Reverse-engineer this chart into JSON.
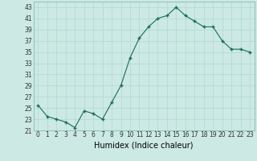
{
  "x": [
    0,
    1,
    2,
    3,
    4,
    5,
    6,
    7,
    8,
    9,
    10,
    11,
    12,
    13,
    14,
    15,
    16,
    17,
    18,
    19,
    20,
    21,
    22,
    23
  ],
  "y": [
    25.5,
    23.5,
    23.0,
    22.5,
    21.5,
    24.5,
    24.0,
    23.0,
    26.0,
    29.0,
    34.0,
    37.5,
    39.5,
    41.0,
    41.5,
    43.0,
    41.5,
    40.5,
    39.5,
    39.5,
    37.0,
    35.5,
    35.5,
    35.0
  ],
  "line_color": "#1a6b5a",
  "marker": "+",
  "markersize": 3.5,
  "linewidth": 0.8,
  "background_color": "#cce9e4",
  "grid_color": "#b0d8d2",
  "xlabel": "Humidex (Indice chaleur)",
  "ylim": [
    21,
    44
  ],
  "xlim": [
    -0.5,
    23.5
  ],
  "yticks": [
    21,
    23,
    25,
    27,
    29,
    31,
    33,
    35,
    37,
    39,
    41,
    43
  ],
  "xticks": [
    0,
    1,
    2,
    3,
    4,
    5,
    6,
    7,
    8,
    9,
    10,
    11,
    12,
    13,
    14,
    15,
    16,
    17,
    18,
    19,
    20,
    21,
    22,
    23
  ],
  "tick_label_fontsize": 5.5,
  "xlabel_fontsize": 7.0
}
